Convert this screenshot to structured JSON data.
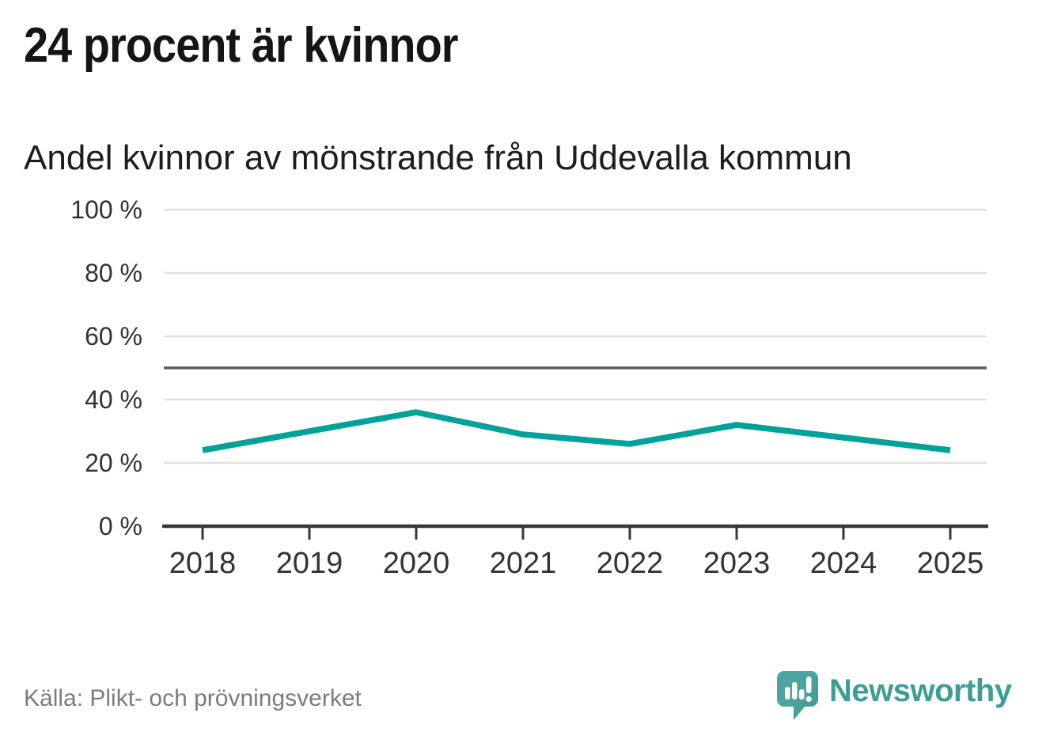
{
  "chart_data": {
    "type": "line",
    "title": "24 procent är kvinnor",
    "subtitle": "Andel kvinnor av mönstrande från Uddevalla kommun",
    "x": [
      2018,
      2019,
      2020,
      2021,
      2022,
      2023,
      2024,
      2025
    ],
    "values": [
      24,
      30,
      36,
      29,
      26,
      32,
      28,
      24
    ],
    "unit": "%",
    "ylim": [
      0,
      100
    ],
    "yticks": [
      0,
      20,
      40,
      60,
      80,
      100
    ],
    "ytick_labels": [
      "0 %",
      "20 %",
      "40 %",
      "60 %",
      "80 %",
      "100 %"
    ],
    "reference_line": 50,
    "grid": true,
    "legend": "none"
  },
  "footer": {
    "source": "Källa: Plikt- och prövningsverket",
    "brand": "Newsworthy",
    "logo_icon": "speech-bubble-bar-chart-icon"
  },
  "colors": {
    "line": "#00a29a",
    "reference_line": "#5a5a60",
    "grid": "#e0e0e0",
    "axis": "#383838",
    "tick_label": "#333333",
    "title_text": "#151515",
    "source_text": "#7b7c80",
    "brand_teal": "#3f9d97",
    "logo_fill": "#4ba49e",
    "logo_fill_dark": "#3f948e"
  }
}
